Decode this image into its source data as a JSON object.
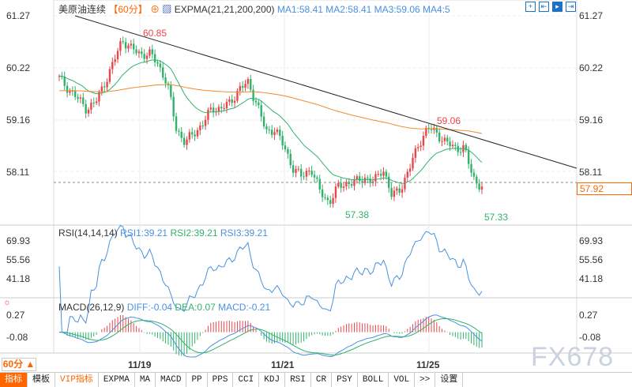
{
  "header": {
    "symbol": "美原油连续",
    "period": "【60分】",
    "indicator": "EXPMA(21,21,200,200)",
    "ma1": "MA1:58.41",
    "ma2": "MA2:58.41",
    "ma3": "MA3:59.06",
    "ma4": "MA4:5"
  },
  "price_axis": [
    "61.27",
    "60.22",
    "59.16",
    "58.11"
  ],
  "current_price": "57.92",
  "annotations": {
    "high": "60.85",
    "mid_high": "59.06",
    "low1": "57.38",
    "low2": "57.33"
  },
  "rsi": {
    "title": "RSI(14,14,14)",
    "rsi1": "RSI1:39.21",
    "rsi2": "RSI2:39.21",
    "rsi3": "RSI3:39.21",
    "axis": [
      "69.93",
      "55.56",
      "41.18"
    ]
  },
  "macd": {
    "title": "MACD(26,12,9)",
    "diff": "DIFF:-0.04",
    "dea": "DEA:0.07",
    "macd": "MACD:-0.21",
    "axis": [
      "0.27",
      "-0.08"
    ]
  },
  "dates": [
    "11/19",
    "11/21",
    "11/25"
  ],
  "period_select": "60分 ▲",
  "watermark": "FX678",
  "toolbar": [
    "指标",
    "模板",
    "VIP指标",
    "EXPMA",
    "MA",
    "MACD",
    "PP",
    "PPS",
    "CCI",
    "KDJ",
    "RSI",
    "CR",
    "PSY",
    "BOLL",
    "VOL",
    ">>",
    "设置"
  ],
  "colors": {
    "up": "#e8464a",
    "down": "#2fb36b",
    "ma_short": "#2fb36b",
    "ma_long": "#f08a2c",
    "trendline": "#222",
    "accent": "#f60"
  },
  "price_anchors": [
    60.0,
    59.8,
    59.6,
    59.4,
    59.5,
    59.9,
    60.3,
    60.8,
    60.6,
    60.5,
    60.5,
    60.3,
    59.9,
    59.0,
    58.7,
    58.9,
    59.1,
    59.4,
    59.4,
    59.5,
    59.8,
    59.9,
    59.5,
    58.9,
    59.0,
    58.6,
    58.2,
    58.0,
    58.2,
    57.7,
    57.5,
    57.8,
    57.9,
    57.9,
    58.0,
    57.9,
    58.2,
    57.6,
    57.8,
    58.2,
    58.7,
    59.0,
    58.9,
    58.7,
    58.6,
    58.6,
    58.0,
    57.8
  ]
}
